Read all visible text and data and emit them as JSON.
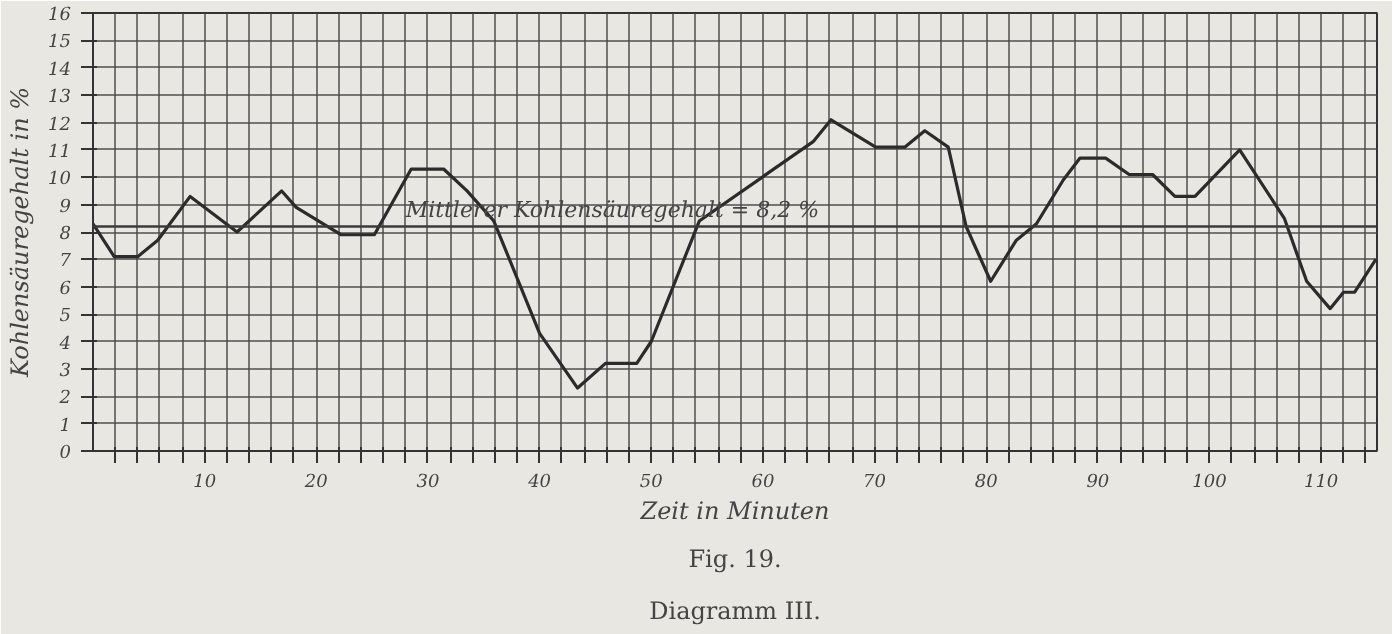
{
  "chart_data": {
    "type": "line",
    "title": "Fig. 19.",
    "subtitle": "Diagramm III.",
    "xlabel": "Zeit in Minuten",
    "ylabel": "Kohlensäuregehalt in %",
    "x": [
      0,
      1.9,
      4,
      5.8,
      8.7,
      12.9,
      16.9,
      18.2,
      22.2,
      25.2,
      28.5,
      31.4,
      33.5,
      35.9,
      40,
      43.4,
      45.9,
      48.7,
      50,
      54.3,
      64.5,
      66.1,
      70.1,
      72.7,
      74.5,
      76.6,
      78.2,
      80.4,
      82.7,
      84.5,
      86.9,
      88.4,
      90.7,
      92.8,
      94.9,
      96.9,
      98.7,
      102.7,
      106.7,
      108.7,
      110.8,
      112,
      113,
      114.9
    ],
    "series": [
      {
        "color": "#2b2b2b",
        "values": [
          8.3,
          7.1,
          7.1,
          7.7,
          9.3,
          8.0,
          9.5,
          8.9,
          7.9,
          7.9,
          10.3,
          10.3,
          9.5,
          8.4,
          4.3,
          2.3,
          3.2,
          3.2,
          4.0,
          8.4,
          11.3,
          12.1,
          11.1,
          11.1,
          11.7,
          11.1,
          8.2,
          6.2,
          7.7,
          8.3,
          9.9,
          10.7,
          10.7,
          10.1,
          10.1,
          9.3,
          9.3,
          11.0,
          8.5,
          6.2,
          5.2,
          5.8,
          5.8,
          7.0
        ]
      }
    ],
    "xlim": [
      0,
      115
    ],
    "ylim": [
      0,
      16
    ],
    "xticks": [
      {
        "value": 2,
        "label": null
      },
      {
        "value": 4,
        "label": null
      },
      {
        "value": 6,
        "label": null
      },
      {
        "value": 8,
        "label": null
      },
      10,
      {
        "value": 12,
        "label": null
      },
      {
        "value": 14,
        "label": null
      },
      {
        "value": 16,
        "label": null
      },
      {
        "value": 18,
        "label": null
      },
      20,
      {
        "value": 22,
        "label": null
      },
      {
        "value": 24,
        "label": null
      },
      {
        "value": 26,
        "label": null
      },
      {
        "value": 28,
        "label": null
      },
      30,
      {
        "value": 32,
        "label": null
      },
      {
        "value": 34,
        "label": null
      },
      {
        "value": 36,
        "label": null
      },
      {
        "value": 38,
        "label": null
      },
      40,
      {
        "value": 42,
        "label": null
      },
      {
        "value": 44,
        "label": null
      },
      {
        "value": 46,
        "label": null
      },
      {
        "value": 48,
        "label": null
      },
      50,
      {
        "value": 52,
        "label": null
      },
      {
        "value": 54,
        "label": null
      },
      {
        "value": 56,
        "label": null
      },
      {
        "value": 58,
        "label": null
      },
      60,
      {
        "value": 62,
        "label": null
      },
      {
        "value": 64,
        "label": null
      },
      {
        "value": 66,
        "label": null
      },
      {
        "value": 68,
        "label": null
      },
      70,
      {
        "value": 72,
        "label": null
      },
      {
        "value": 74,
        "label": null
      },
      {
        "value": 76,
        "label": null
      },
      {
        "value": 78,
        "label": null
      },
      80,
      {
        "value": 82,
        "label": null
      },
      {
        "value": 84,
        "label": null
      },
      {
        "value": 86,
        "label": null
      },
      {
        "value": 88,
        "label": null
      },
      90,
      {
        "value": 92,
        "label": null
      },
      {
        "value": 94,
        "label": null
      },
      {
        "value": 96,
        "label": null
      },
      {
        "value": 98,
        "label": null
      },
      100,
      {
        "value": 102,
        "label": null
      },
      {
        "value": 104,
        "label": null
      },
      {
        "value": 106,
        "label": null
      },
      {
        "value": 108,
        "label": null
      },
      110,
      {
        "value": 112,
        "label": null
      },
      {
        "value": 114,
        "label": null
      }
    ],
    "yticks": [
      0,
      1,
      2,
      3,
      4,
      5,
      6,
      7,
      8,
      9,
      10,
      11,
      12,
      13,
      14,
      15,
      16
    ],
    "ref_lines": [
      {
        "axis": "y",
        "value": 8.2,
        "label": "Mittlerer Kohlensäuregehalt = 8,2 %",
        "color": "#3a3a3a"
      }
    ],
    "grid": true,
    "marker": "none",
    "line_style": "solid"
  }
}
